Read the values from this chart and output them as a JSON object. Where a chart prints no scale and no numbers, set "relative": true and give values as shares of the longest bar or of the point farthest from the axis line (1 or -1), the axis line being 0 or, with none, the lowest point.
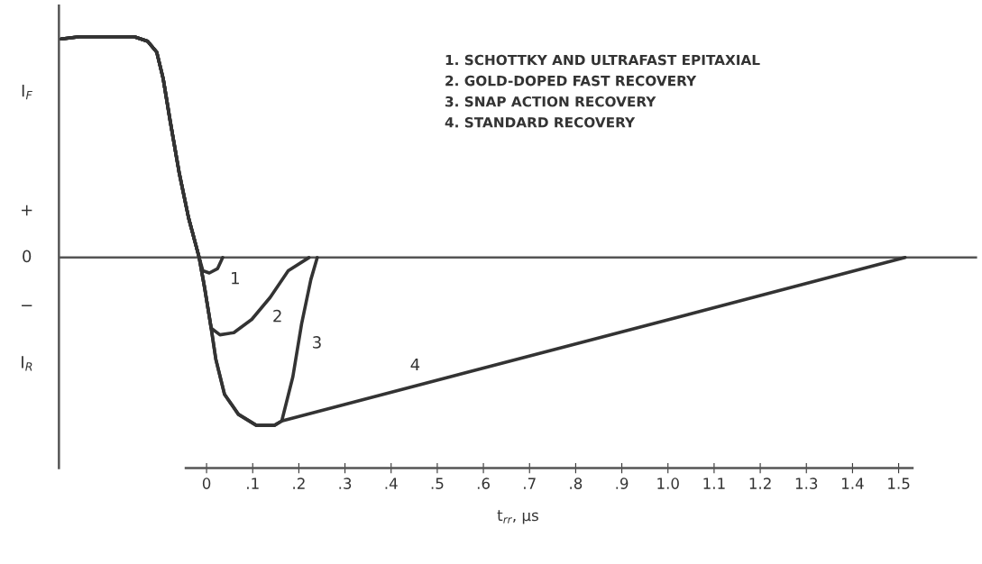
{
  "chart_data": {
    "type": "line",
    "relative": true,
    "xlabel": "t$_{rr}$, µs",
    "xlim": [
      -0.32,
      1.67
    ],
    "xticks": [
      0,
      {
        "value": 0.1,
        "label": ".1"
      },
      {
        "value": 0.2,
        "label": ".2"
      },
      {
        "value": 0.3,
        "label": ".3"
      },
      {
        "value": 0.4,
        "label": ".4"
      },
      {
        "value": 0.5,
        "label": ".5"
      },
      {
        "value": 0.6,
        "label": ".6"
      },
      {
        "value": 0.7,
        "label": ".7"
      },
      {
        "value": 0.8,
        "label": ".8"
      },
      {
        "value": 0.9,
        "label": ".9"
      },
      {
        "value": 1.0,
        "label": "1.0"
      },
      1.1,
      1.2,
      1.3,
      1.4,
      1.5
    ],
    "ref_lines": [
      {
        "axis": "y",
        "value": 0,
        "label": null,
        "color": "#555555"
      }
    ],
    "grid": false,
    "legend": false,
    "marker": "none",
    "line_style": "solid",
    "series": [
      {
        "name": "1",
        "color": "#333333",
        "x": [
          -0.315,
          -0.275,
          -0.157,
          -0.128,
          -0.108,
          -0.094,
          -0.079,
          -0.059,
          -0.039,
          -0.016,
          -0.008,
          0.006,
          0.024,
          0.035
        ],
        "values": [
          0.99,
          1,
          1,
          0.98,
          0.93,
          0.81,
          0.62,
          0.38,
          0.18,
          0,
          -0.06,
          -0.07,
          -0.05,
          0
        ]
      },
      {
        "name": "2",
        "color": "#333333",
        "x": [
          -0.315,
          -0.275,
          -0.157,
          -0.128,
          -0.108,
          -0.094,
          -0.079,
          -0.059,
          -0.039,
          -0.016,
          -0.004,
          0.01,
          0.029,
          0.059,
          0.098,
          0.138,
          0.177,
          0.222
        ],
        "values": [
          0.99,
          1,
          1,
          0.98,
          0.93,
          0.81,
          0.62,
          0.38,
          0.18,
          0,
          -0.14,
          -0.32,
          -0.35,
          -0.34,
          -0.28,
          -0.18,
          -0.06,
          0
        ]
      },
      {
        "name": "3",
        "color": "#333333",
        "x": [
          -0.315,
          -0.275,
          -0.157,
          -0.128,
          -0.108,
          -0.094,
          -0.079,
          -0.059,
          -0.039,
          -0.016,
          -0.004,
          0.01,
          0.02,
          0.039,
          0.069,
          0.108,
          0.147,
          0.163,
          0.187,
          0.206,
          0.226,
          0.24
        ],
        "values": [
          0.99,
          1,
          1,
          0.98,
          0.93,
          0.81,
          0.62,
          0.38,
          0.18,
          0,
          -0.14,
          -0.32,
          -0.46,
          -0.62,
          -0.71,
          -0.76,
          -0.76,
          -0.74,
          -0.54,
          -0.3,
          -0.1,
          0
        ]
      },
      {
        "name": "4",
        "color": "#333333",
        "x": [
          -0.315,
          -0.275,
          -0.157,
          -0.128,
          -0.108,
          -0.094,
          -0.079,
          -0.059,
          -0.039,
          -0.016,
          -0.004,
          0.01,
          0.02,
          0.039,
          0.069,
          0.108,
          0.147,
          0.163,
          1.514
        ],
        "values": [
          0.99,
          1,
          1,
          0.98,
          0.93,
          0.81,
          0.62,
          0.38,
          0.18,
          0,
          -0.14,
          -0.32,
          -0.46,
          -0.62,
          -0.71,
          -0.76,
          -0.76,
          -0.74,
          0
        ]
      }
    ],
    "annotations": [
      "I$_{F}$",
      "+",
      "0",
      "−",
      "I$_{R}$",
      "1. SCHOTTKY AND ULTRAFAST EPITAXIAL",
      "2. GOLD-DOPED FAST RECOVERY",
      "3. SNAP ACTION RECOVERY",
      "4. STANDARD RECOVERY"
    ]
  }
}
